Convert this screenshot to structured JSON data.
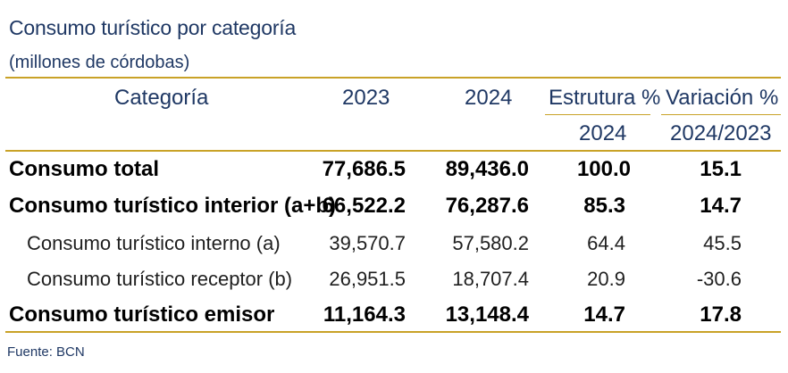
{
  "title": "Consumo turístico por categoría",
  "subtitle": "(millones de córdobas)",
  "headers": {
    "categoria": "Categoría",
    "y2023": "2023",
    "y2024": "2024",
    "estructura": "Estrutura %",
    "estructura_year": "2024",
    "variacion": "Variación %",
    "variacion_years": "2024/2023"
  },
  "rows": [
    {
      "label": "Consumo total",
      "v2023": "77,686.5",
      "v2024": "89,436.0",
      "estructura": "100.0",
      "variacion": "15.1"
    },
    {
      "label": "Consumo turístico interior (a+b)",
      "v2023": "66,522.2",
      "v2024": "76,287.6",
      "estructura": "85.3",
      "variacion": "14.7"
    },
    {
      "label": "Consumo turístico interno (a)",
      "v2023": "39,570.7",
      "v2024": "57,580.2",
      "estructura": "64.4",
      "variacion": "45.5"
    },
    {
      "label": "Consumo turístico receptor (b)",
      "v2023": "26,951.5",
      "v2024": "18,707.4",
      "estructura": "20.9",
      "variacion": "-30.6"
    },
    {
      "label": "Consumo turístico emisor",
      "v2023": "11,164.3",
      "v2024": "13,148.4",
      "estructura": "14.7",
      "variacion": "17.8"
    }
  ],
  "source": "Fuente: BCN"
}
